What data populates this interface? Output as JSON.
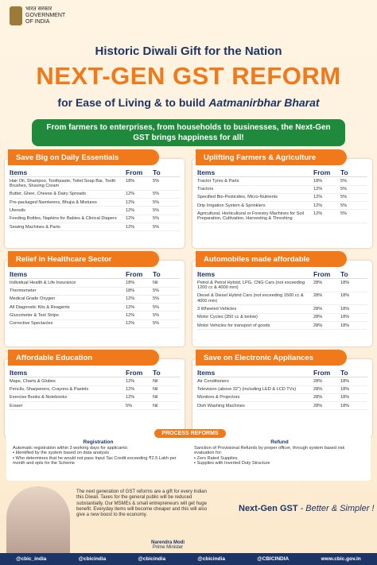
{
  "header": {
    "emblem_hindi": "भारत सरकार",
    "emblem_line1": "GOVERNMENT",
    "emblem_line2": "OF INDIA"
  },
  "kicker": "Historic Diwali Gift for the Nation",
  "title": "NEXT-GEN GST REFORM",
  "subtitle_plain": "for Ease of Living & to build",
  "subtitle_italic": "Aatmanirbhar Bharat",
  "banner": "From farmers to enterprises, from households to businesses, the Next-Gen GST brings happiness for all!",
  "sections": [
    {
      "title": "Save Big on Daily Essentials",
      "columns": [
        "Items",
        "From",
        "To"
      ],
      "rows": [
        [
          "Hair Oil, Shampoo, Toothpaste, Toilet Soap Bar, Tooth Brushes, Shaving Cream",
          "18%",
          "5%"
        ],
        [
          "Butter, Ghee, Cheese & Dairy Spreads",
          "12%",
          "5%"
        ],
        [
          "Pre-packaged Namkeens, Bhujia & Mixtures",
          "12%",
          "5%"
        ],
        [
          "Utensils",
          "12%",
          "5%"
        ],
        [
          "Feeding Bottles, Napkins for Babies & Clinical Diapers",
          "12%",
          "5%"
        ],
        [
          "Sewing Machines & Parts",
          "12%",
          "5%"
        ]
      ]
    },
    {
      "title": "Uplifting Farmers & Agriculture",
      "columns": [
        "Items",
        "From",
        "To"
      ],
      "rows": [
        [
          "Tractor Tyres & Parts",
          "18%",
          "5%"
        ],
        [
          "Tractors",
          "12%",
          "5%"
        ],
        [
          "Specified Bio-Pesticides, Micro-Nutrients",
          "12%",
          "5%"
        ],
        [
          "Drip Irrigation System & Sprinklers",
          "12%",
          "5%"
        ],
        [
          "Agricultural, Horticultural or Forestry Machines for Soil Preparation, Cultivation, Harvesting & Threshing",
          "12%",
          "5%"
        ]
      ]
    },
    {
      "title": "Relief in Healthcare Sector",
      "columns": [
        "Items",
        "From",
        "To"
      ],
      "rows": [
        [
          "Individual Health & Life Insurance",
          "18%",
          "Nil"
        ],
        [
          "Thermometer",
          "18%",
          "5%"
        ],
        [
          "Medical Grade Oxygen",
          "12%",
          "5%"
        ],
        [
          "All Diagnostic Kits & Reagents",
          "12%",
          "5%"
        ],
        [
          "Glucometer & Test Strips",
          "12%",
          "5%"
        ],
        [
          "Corrective Spectacles",
          "12%",
          "5%"
        ]
      ]
    },
    {
      "title": "Automobiles made affordable",
      "columns": [
        "Items",
        "From",
        "To"
      ],
      "rows": [
        [
          "Petrol & Petrol Hybrid, LPG, CNG Cars (not exceeding 1200 cc & 4000 mm)",
          "28%",
          "18%"
        ],
        [
          "Diesel & Diesel Hybrid Cars (not exceeding 1500 cc & 4000 mm)",
          "28%",
          "18%"
        ],
        [
          "3 Wheeled Vehicles",
          "28%",
          "18%"
        ],
        [
          "Motor Cycles (350 cc & below)",
          "28%",
          "18%"
        ],
        [
          "Motor Vehicles for transport of goods",
          "28%",
          "18%"
        ]
      ]
    },
    {
      "title": "Affordable Education",
      "columns": [
        "Items",
        "From",
        "To"
      ],
      "rows": [
        [
          "Maps, Charts & Globes",
          "12%",
          "Nil"
        ],
        [
          "Pencils, Sharpeners, Crayons & Pastels",
          "12%",
          "Nil"
        ],
        [
          "Exercise Books & Notebooks",
          "12%",
          "Nil"
        ],
        [
          "Eraser",
          "5%",
          "Nil"
        ]
      ]
    },
    {
      "title": "Save on Electronic Appliances",
      "columns": [
        "Items",
        "From",
        "To"
      ],
      "rows": [
        [
          "Air Conditioners",
          "28%",
          "18%"
        ],
        [
          "Television (above 32\") (including LED & LCD TVs)",
          "28%",
          "18%"
        ],
        [
          "Monitors & Projectors",
          "28%",
          "18%"
        ],
        [
          "Dish Washing Machines",
          "28%",
          "18%"
        ]
      ]
    }
  ],
  "process": {
    "title": "PROCESS REFORMS",
    "registration": {
      "title": "Registration",
      "intro": "Automatic registration within 3 working days for applicants:",
      "points": [
        "Identified by the system based on data analysis",
        "Who determines that he would not pass Input Tax Credit exceeding ₹2.5 Lakh per month and opts for the Scheme"
      ]
    },
    "refund": {
      "title": "Refund",
      "intro": "Sanction of Provisional Refunds by proper officer, through system based risk evaluation for:",
      "points": [
        "Zero Rated Supplies",
        "Supplies with Inverted Duty Structure"
      ]
    }
  },
  "quote": {
    "text": "The next generation of GST reforms are a gift for every Indian this Diwali. Taxes for the general public will be reduced substantially. Our MSMEs & small entrepreneurs will get huge benefit. Everyday items will become cheaper and this will also give a new boost to the economy.",
    "author": "Narendra Modi",
    "role": "Prime Minister"
  },
  "tagline": {
    "bold": "Next-Gen GST",
    "italic": "- Better & Simpler !"
  },
  "footer": [
    "@cbic_india",
    "@cbicindia",
    "@cbicindia",
    "@cbicindia",
    "@CBICINDIA",
    "www.cbic.gov.in"
  ]
}
